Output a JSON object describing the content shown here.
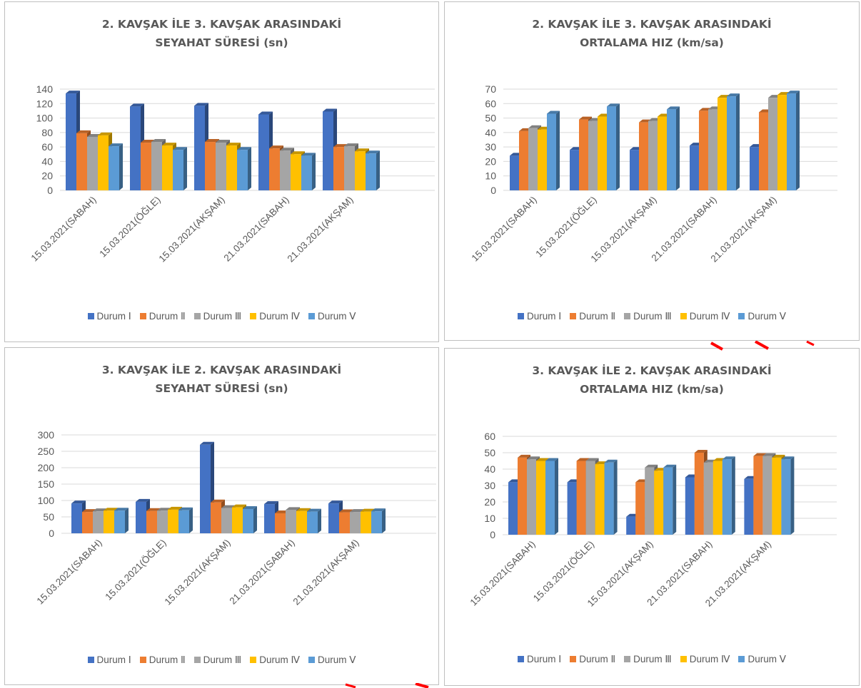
{
  "colors": {
    "series": [
      "#4472c4",
      "#ed7d31",
      "#a5a5a5",
      "#ffc000",
      "#5b9bd5"
    ],
    "grid": "#d9d9d9",
    "text": "#595959",
    "mark": "#ff0000"
  },
  "chart_data": [
    {
      "type": "bar",
      "title_lines": [
        "2. KAVŞAK İLE 3. KAVŞAK ARASINDAKİ",
        "SEYAHAT SÜRESİ (sn)"
      ],
      "categories": [
        "15.03.2021(SABAH)",
        "15.03.2021(ÖĞLE)",
        "15.03.2021(AKŞAM)",
        "21.03.2021(SABAH)",
        "21.03.2021(AKŞAM)"
      ],
      "series": [
        {
          "name": "Durum Ⅰ",
          "values": [
            134,
            116,
            117,
            105,
            109
          ]
        },
        {
          "name": "Durum Ⅱ",
          "values": [
            79,
            66,
            67,
            58,
            60
          ]
        },
        {
          "name": "Durum Ⅲ",
          "values": [
            74,
            67,
            66,
            55,
            61
          ]
        },
        {
          "name": "Durum Ⅳ",
          "values": [
            76,
            62,
            62,
            50,
            54
          ]
        },
        {
          "name": "Durum Ⅴ",
          "values": [
            61,
            56,
            56,
            48,
            51
          ]
        }
      ],
      "ylim": [
        0,
        140
      ],
      "yticks": [
        0,
        20,
        40,
        60,
        80,
        100,
        120,
        140
      ],
      "grid": true,
      "legend": "bottom"
    },
    {
      "type": "bar",
      "title_lines": [
        "2.  KAVŞAK İLE 3. KAVŞAK ARASINDAKİ",
        "ORTALAMA HIZ (km/sa)"
      ],
      "categories": [
        "15.03.2021(SABAH)",
        "15.03.2021(ÖĞLE)",
        "15.03.2021(AKŞAM)",
        "21.03.2021(SABAH)",
        "21.03.2021(AKŞAM)"
      ],
      "series": [
        {
          "name": "Durum Ⅰ",
          "values": [
            24,
            28,
            28,
            31,
            30
          ]
        },
        {
          "name": "Durum Ⅱ",
          "values": [
            41,
            49,
            47,
            55,
            54
          ]
        },
        {
          "name": "Durum Ⅲ",
          "values": [
            43,
            48,
            48,
            56,
            64
          ]
        },
        {
          "name": "Durum Ⅳ",
          "values": [
            42,
            51,
            51,
            64,
            66
          ]
        },
        {
          "name": "Durum Ⅴ",
          "values": [
            53,
            58,
            56,
            65,
            67
          ]
        }
      ],
      "ylim": [
        0,
        70
      ],
      "yticks": [
        0,
        10,
        20,
        30,
        40,
        50,
        60,
        70
      ],
      "grid": true,
      "legend": "bottom"
    },
    {
      "type": "bar",
      "title_lines": [
        "3. KAVŞAK İLE 2. KAVŞAK ARASINDAKİ",
        "SEYAHAT SÜRESİ (sn)"
      ],
      "categories": [
        "15.03.2021(SABAH)",
        "15.03.2021(ÖĞLE)",
        "15.03.2021(AKŞAM)",
        "21.03.2021(SABAH)",
        "21.03.2021(AKŞAM)"
      ],
      "series": [
        {
          "name": "Durum Ⅰ",
          "values": [
            91,
            96,
            270,
            89,
            91
          ]
        },
        {
          "name": "Durum Ⅱ",
          "values": [
            65,
            68,
            94,
            61,
            64
          ]
        },
        {
          "name": "Durum Ⅲ",
          "values": [
            67,
            69,
            77,
            71,
            65
          ]
        },
        {
          "name": "Durum Ⅳ",
          "values": [
            69,
            72,
            79,
            68,
            66
          ]
        },
        {
          "name": "Durum Ⅴ",
          "values": [
            69,
            70,
            74,
            66,
            67
          ]
        }
      ],
      "ylim": [
        0,
        300
      ],
      "yticks": [
        0,
        50,
        100,
        150,
        200,
        250,
        300
      ],
      "grid": true,
      "legend": "bottom"
    },
    {
      "type": "bar",
      "title_lines": [
        "3. KAVŞAK İLE 2. KAVŞAK ARASINDAKİ",
        "ORTALAMA HIZ (km/sa)"
      ],
      "categories": [
        "15.03.2021(SABAH)",
        "15.03.2021(ÖĞLE)",
        "15.03.2021(AKŞAM)",
        "21.03.2021(SABAH)",
        "21.03.2021(AKŞAM)"
      ],
      "series": [
        {
          "name": "Durum Ⅰ",
          "values": [
            32,
            32,
            11,
            35,
            34
          ]
        },
        {
          "name": "Durum Ⅱ",
          "values": [
            47,
            45,
            32,
            50,
            48
          ]
        },
        {
          "name": "Durum Ⅲ",
          "values": [
            46,
            45,
            41,
            44,
            48
          ]
        },
        {
          "name": "Durum Ⅳ",
          "values": [
            45,
            43,
            39,
            45,
            47
          ]
        },
        {
          "name": "Durum Ⅴ",
          "values": [
            45,
            44,
            41,
            46,
            46
          ]
        }
      ],
      "ylim": [
        0,
        60
      ],
      "yticks": [
        0,
        10,
        20,
        30,
        40,
        50,
        60
      ],
      "grid": true,
      "legend": "bottom"
    }
  ]
}
